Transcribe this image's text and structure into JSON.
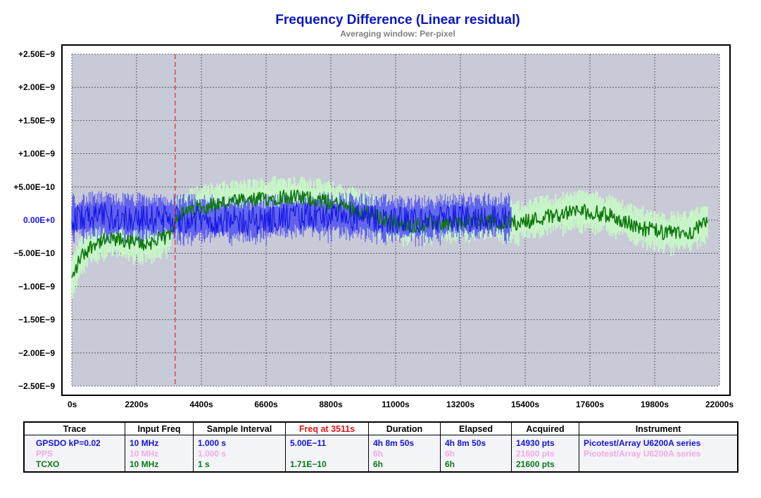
{
  "chart_data": {
    "type": "line",
    "title": "Frequency Difference (Linear residual)",
    "subtitle": "Averaging window: Per-pixel",
    "xlim": [
      0,
      22000
    ],
    "ylim": [
      -2.5e-09,
      2.5e-09
    ],
    "x_ticks": [
      0,
      2200,
      4400,
      6600,
      8800,
      11000,
      13200,
      15400,
      17600,
      19800,
      22000
    ],
    "x_tick_labels": [
      "0s",
      "2200s",
      "4400s",
      "6600s",
      "8800s",
      "11000s",
      "13200s",
      "15400s",
      "17600s",
      "19800s",
      "22000s"
    ],
    "y_ticks": [
      2.5e-09,
      2e-09,
      1.5e-09,
      1e-09,
      5e-10,
      0,
      -5e-10,
      -1e-09,
      -1.5e-09,
      -2e-09,
      -2.5e-09
    ],
    "y_tick_labels": [
      "+2.50E−9",
      "+2.00E−9",
      "+1.50E−9",
      "+1.00E−9",
      "+5.00E−10",
      "0.00E+0",
      "−5.00E−10",
      "−1.00E−9",
      "−1.50E−9",
      "−2.00E−9",
      "−2.50E−9"
    ],
    "grid": true,
    "cursor_x": 3511,
    "series": [
      {
        "name": "GPSDO kP=0.02",
        "color": "#1414e6",
        "band_color": "#5050f0",
        "x": [
          0,
          1000,
          2000,
          3000,
          4000,
          5000,
          6000,
          7000,
          8000,
          9000,
          10000,
          11000,
          12000,
          13000,
          14000,
          14930
        ],
        "y": [
          2e-11,
          5e-11,
          3e-11,
          2e-11,
          1e-11,
          0.0,
          -2e-11,
          3e-11,
          6e-11,
          5e-11,
          2e-11,
          0.0,
          -1e-11,
          3e-11,
          4e-11,
          2e-11
        ],
        "band_halfwidth": 3e-10
      },
      {
        "name": "TCXO",
        "color": "#0f780f",
        "band_color": "#c8f5c8",
        "x": [
          0,
          300,
          800,
          1500,
          2500,
          3300,
          3500,
          4300,
          5200,
          6200,
          7200,
          8200,
          9200,
          10200,
          11200,
          12200,
          13200,
          14200,
          15200,
          16200,
          17200,
          18200,
          19200,
          20200,
          21000,
          21600
        ],
        "y": [
          -9e-10,
          -5.5e-10,
          -3.3e-10,
          -3e-10,
          -3.6e-10,
          -2.4e-10,
          3e-11,
          2e-10,
          2.6e-10,
          3e-10,
          3.6e-10,
          3.2e-10,
          2.2e-10,
          8e-11,
          -8e-11,
          -5e-11,
          -3e-11,
          -2e-11,
          -4e-11,
          6e-11,
          1.4e-10,
          8e-11,
          -1e-10,
          -2e-10,
          -1.8e-10,
          -5e-11
        ],
        "band_halfwidth": 2.6e-10
      }
    ]
  },
  "legend": {
    "headers": {
      "trace": "Trace",
      "input_freq": "Input Freq",
      "sample_interval": "Sample Interval",
      "freq_at": "Freq at 3511s",
      "duration": "Duration",
      "elapsed": "Elapsed",
      "acquired": "Acquired",
      "instrument": "Instrument"
    },
    "rows": [
      {
        "trace": "GPSDO kP=0.02",
        "input_freq": "10 MHz",
        "sample_interval": "1.000 s",
        "freq_at": "5.00E−11",
        "duration": "4h 8m 50s",
        "elapsed": "4h 8m 50s",
        "acquired": "14930 pts",
        "instrument": "Picotest/Array U6200A series",
        "color": "#1414d2"
      },
      {
        "trace": "PPS",
        "input_freq": "10 MHz",
        "sample_interval": "1.000 s",
        "freq_at": "",
        "duration": "6h",
        "elapsed": "6h",
        "acquired": "21600 pts",
        "instrument": "Picotest/Array U6200A series",
        "color": "#f5a8e6"
      },
      {
        "trace": "TCXO",
        "input_freq": "10 MHz",
        "sample_interval": "1 s",
        "freq_at": "1.71E−10",
        "duration": "6h",
        "elapsed": "6h",
        "acquired": "21600 pts",
        "instrument": "",
        "color": "#0a7814"
      }
    ]
  }
}
